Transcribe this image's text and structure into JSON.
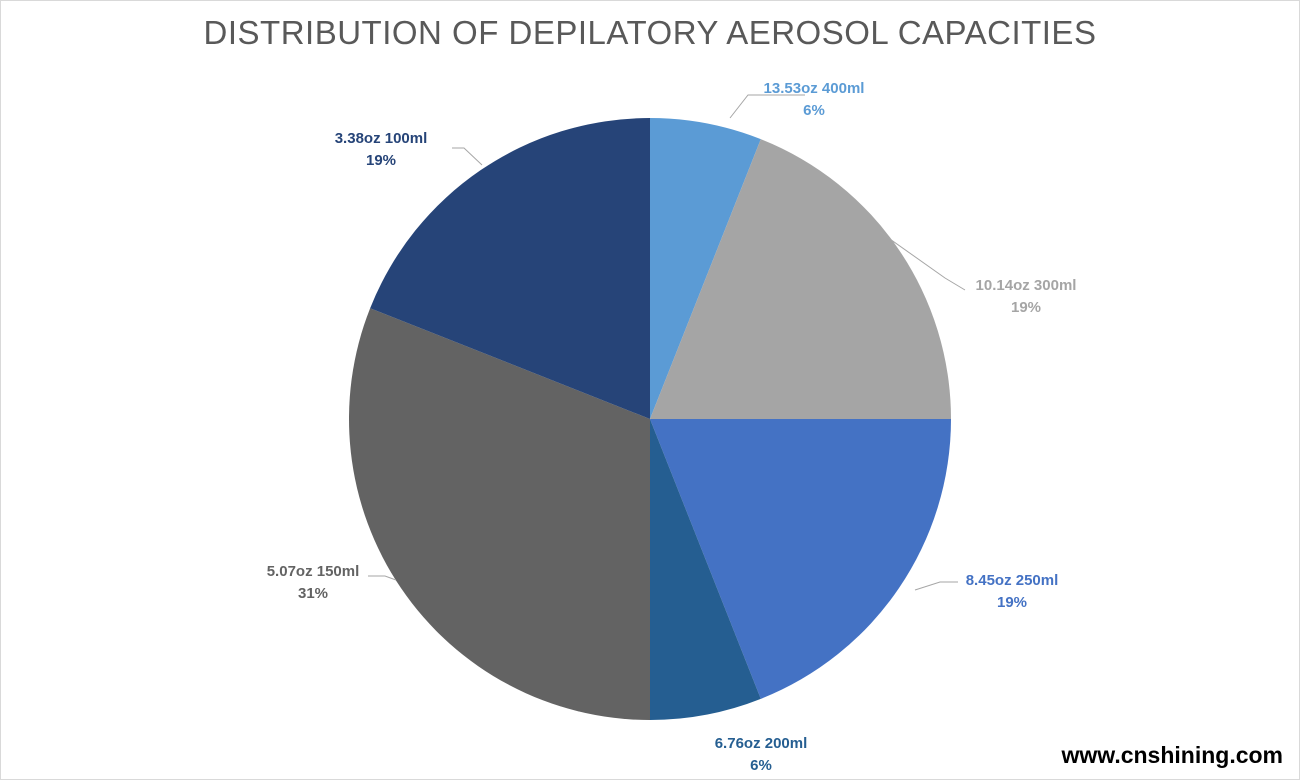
{
  "chart_data": {
    "type": "pie",
    "title": "DISTRIBUTION OF DEPILATORY AEROSOL CAPACITIES",
    "start_angle_deg": 0,
    "direction": "clockwise",
    "slices": [
      {
        "label": "13.53oz 400ml",
        "value": 6,
        "percent_label": "6%",
        "color": "#5b9bd5"
      },
      {
        "label": "10.14oz 300ml",
        "value": 19,
        "percent_label": "19%",
        "color": "#a5a5a5"
      },
      {
        "label": "8.45oz 250ml",
        "value": 19,
        "percent_label": "19%",
        "color": "#4472c4"
      },
      {
        "label": "6.76oz 200ml",
        "value": 6,
        "percent_label": "6%",
        "color": "#255e91"
      },
      {
        "label": "5.07oz 150ml",
        "value": 31,
        "percent_label": "31%",
        "color": "#636363"
      },
      {
        "label": "3.38oz 100ml",
        "value": 19,
        "percent_label": "19%",
        "color": "#264478"
      }
    ],
    "legend": "none",
    "data_labels": "outside-with-leader-lines"
  },
  "watermark": "www.cnshining.com"
}
